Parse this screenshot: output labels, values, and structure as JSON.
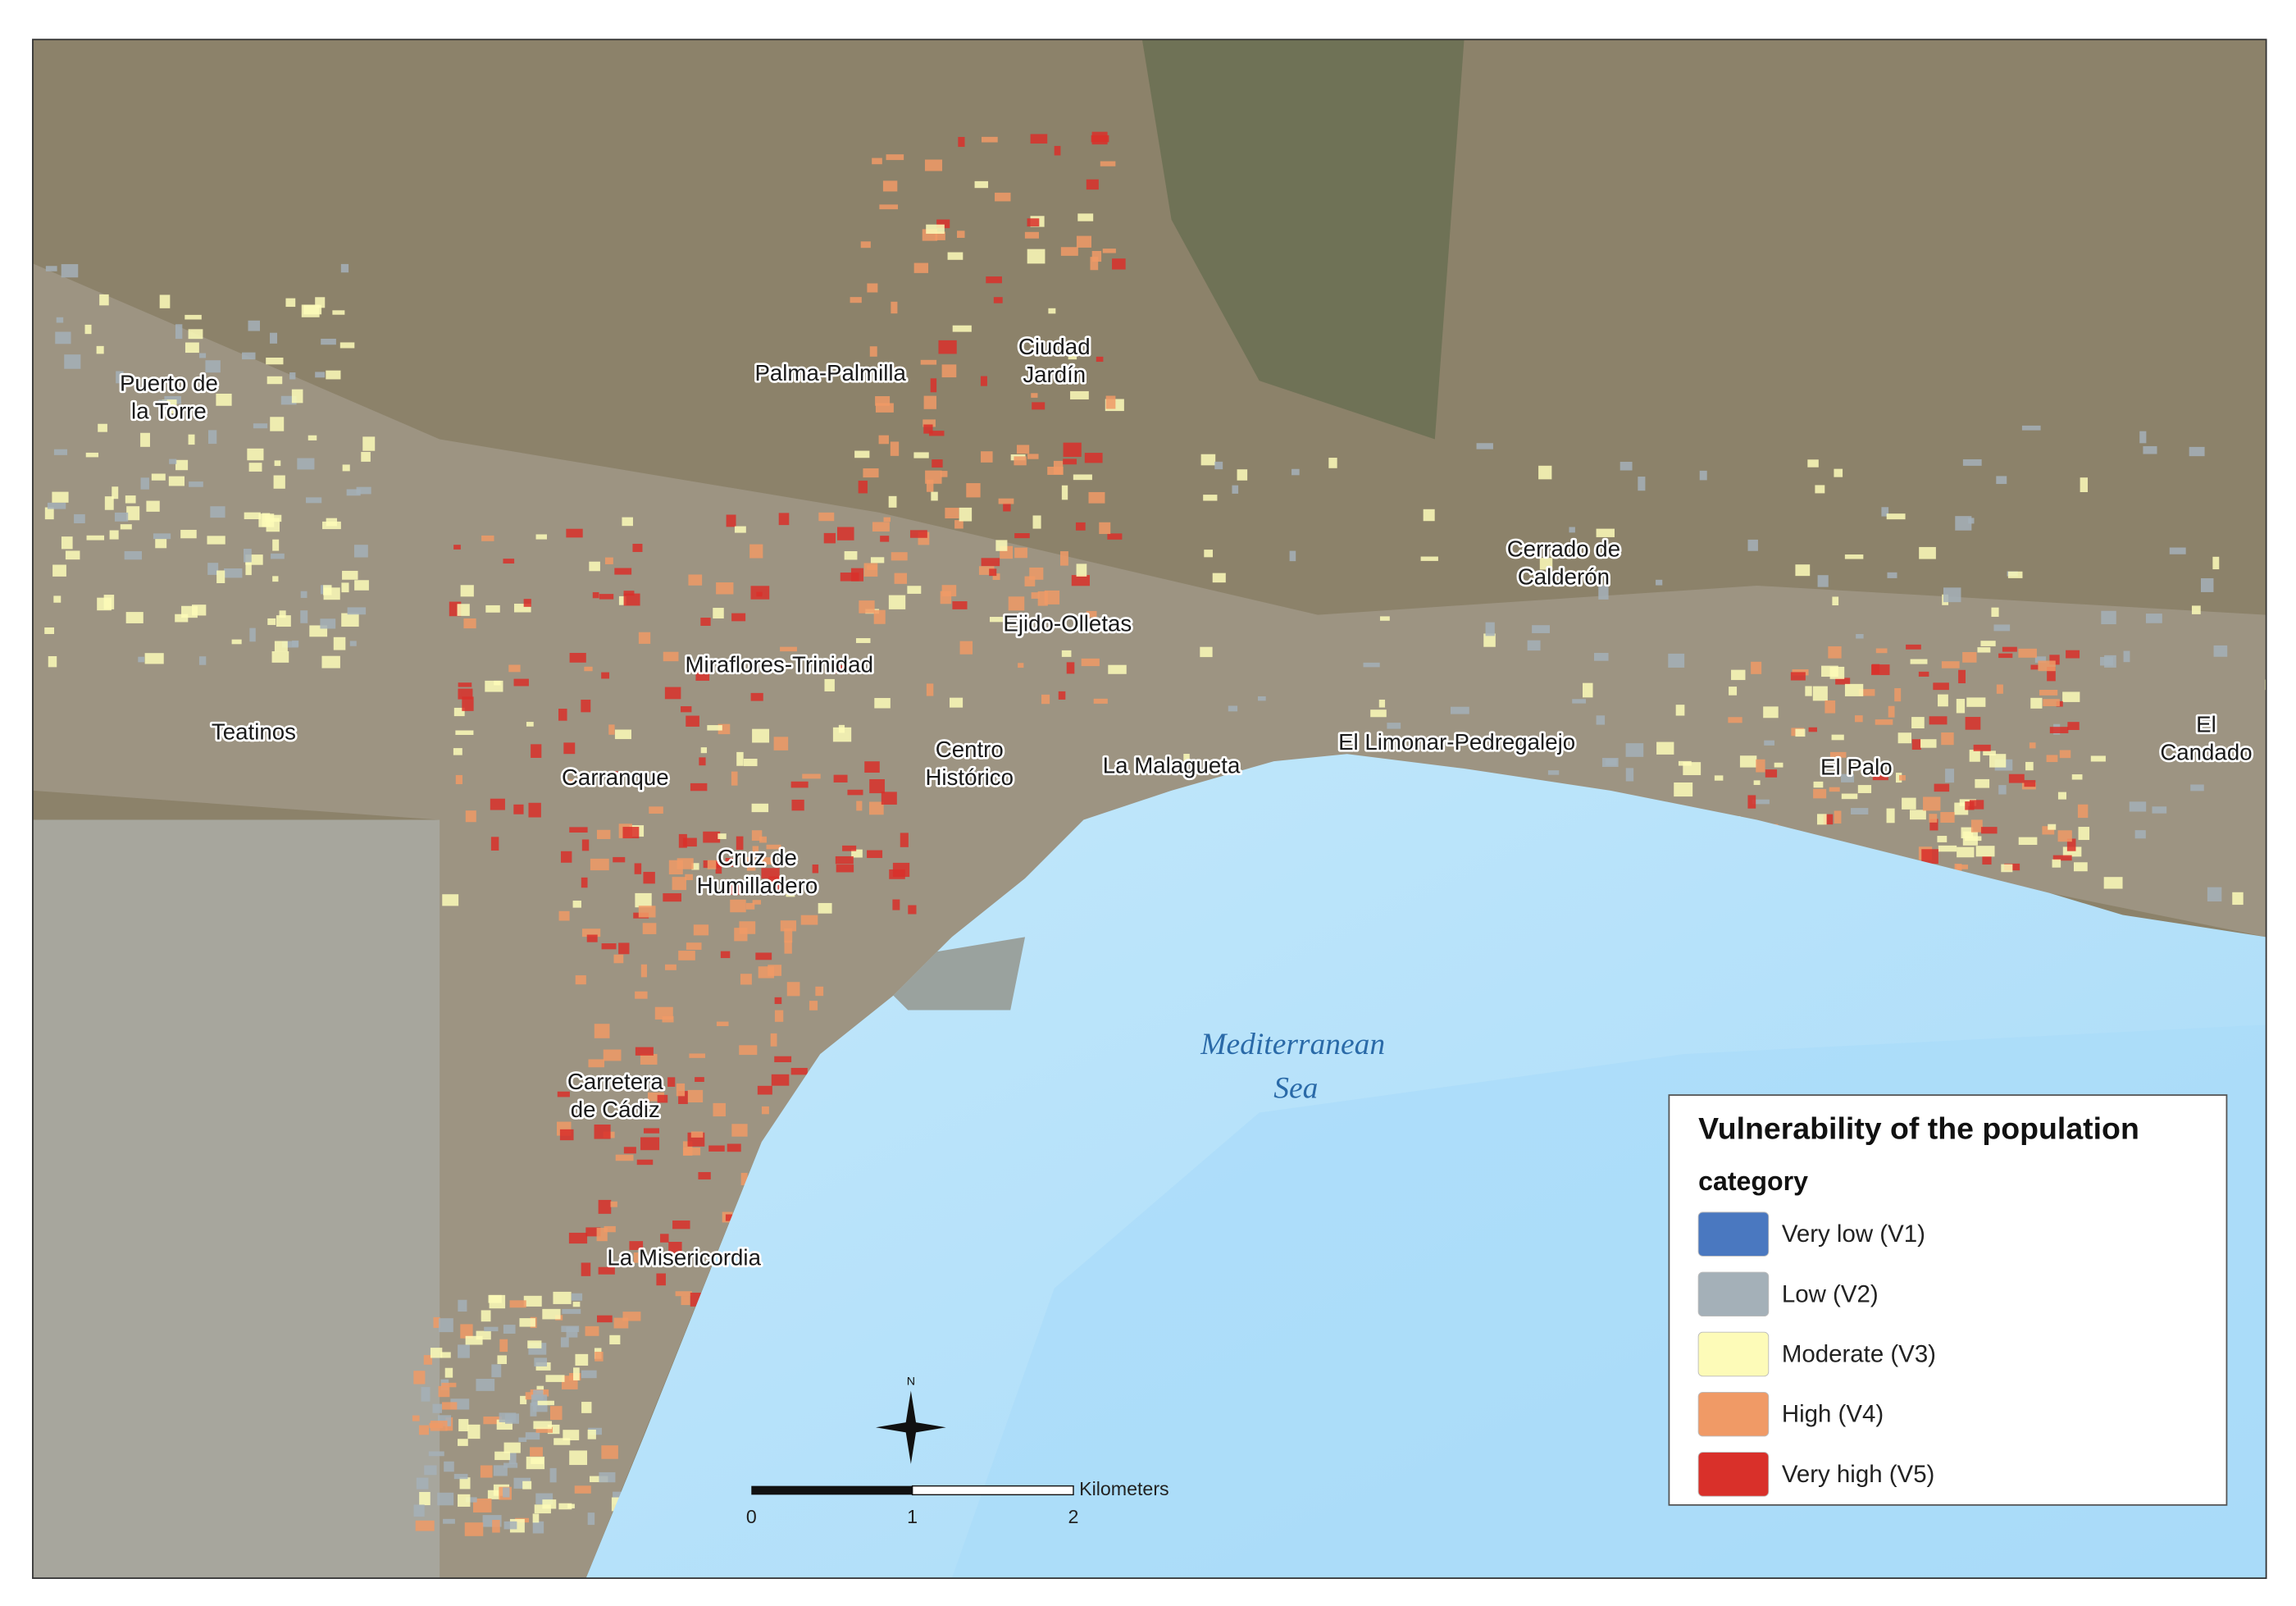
{
  "places": [
    {
      "lines": [
        "Puerto de",
        "la Torre"
      ]
    },
    {
      "lines": [
        "Palma-Palmilla"
      ]
    },
    {
      "lines": [
        "Ciudad",
        "Jardín"
      ]
    },
    {
      "lines": [
        "Cerrado de",
        "Calderón"
      ]
    },
    {
      "lines": [
        "Ejido-Olletas"
      ]
    },
    {
      "lines": [
        "Miraflores-Trinidad"
      ]
    },
    {
      "lines": [
        "Teatinos"
      ]
    },
    {
      "lines": [
        "Carranque"
      ]
    },
    {
      "lines": [
        "Centro",
        "Histórico"
      ]
    },
    {
      "lines": [
        "La Malagueta"
      ]
    },
    {
      "lines": [
        "El Limonar-Pedregalejo"
      ]
    },
    {
      "lines": [
        "El Palo"
      ]
    },
    {
      "lines": [
        "El",
        "Candado"
      ]
    },
    {
      "lines": [
        "Cruz de",
        "Humilladero"
      ]
    },
    {
      "lines": [
        "Carretera",
        "de Cádiz"
      ]
    },
    {
      "lines": [
        "La Misericordia"
      ]
    }
  ],
  "sea_label": {
    "lines": [
      "Mediterranean",
      "Sea"
    ]
  },
  "legend": {
    "title": "Vulnerability of the population",
    "subtitle": "category",
    "items": [
      {
        "label": "Very low (V1)",
        "color": "#4a78c0"
      },
      {
        "label": "Low (V2)",
        "color": "#a4b0b8"
      },
      {
        "label": "Moderate (V3)",
        "color": "#fdfbb8"
      },
      {
        "label": "High (V4)",
        "color": "#f09a66"
      },
      {
        "label": "Very high (V5)",
        "color": "#d9302a"
      }
    ]
  },
  "scale_bar": {
    "ticks": [
      0,
      1,
      2
    ],
    "unit": "Kilometers"
  },
  "north": "N"
}
